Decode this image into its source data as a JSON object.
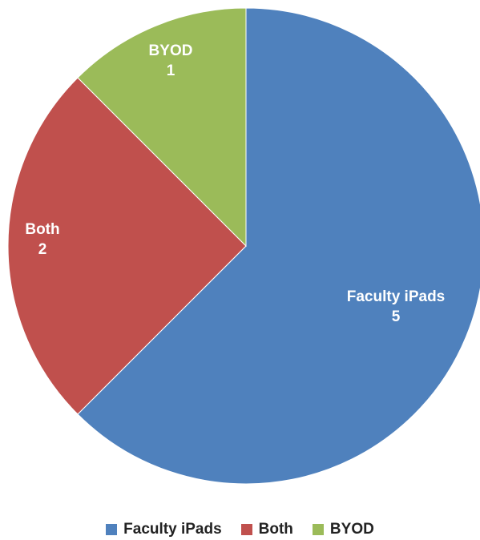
{
  "chart_data": {
    "type": "pie",
    "title": "",
    "start_angle": "12 o'clock",
    "direction": "clockwise",
    "legend_position": "bottom",
    "slices": [
      {
        "label": "Faculty iPads",
        "value": 5,
        "color": "#4f81bd"
      },
      {
        "label": "Both",
        "value": 2,
        "color": "#c0504d"
      },
      {
        "label": "BYOD",
        "value": 1,
        "color": "#9bbb59"
      }
    ]
  }
}
